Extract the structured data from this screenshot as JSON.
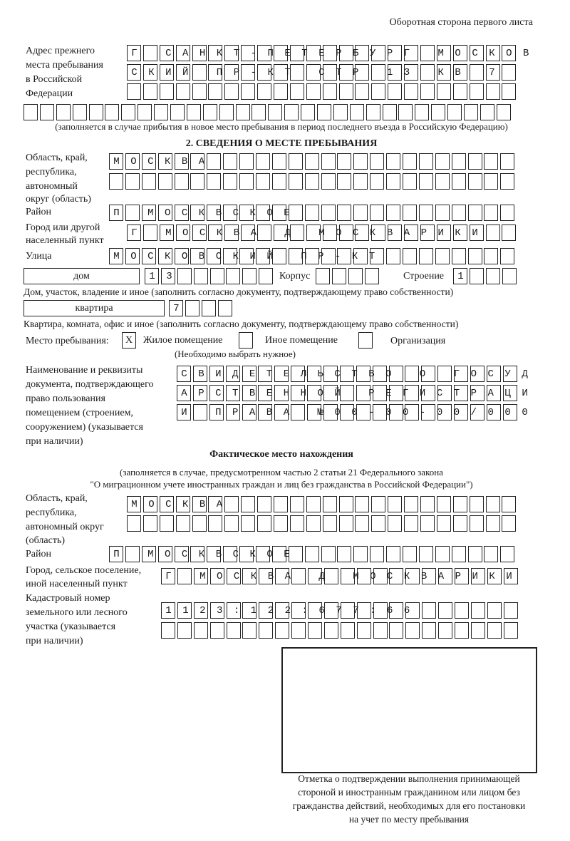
{
  "header": {
    "sheet_label": "Оборотная сторона первого листа"
  },
  "previous_address": {
    "label_lines": [
      "Адрес прежнего",
      "места пребывания",
      "в Российской",
      "Федерации"
    ],
    "rows": [
      "Г САНКТ-ПЕТЕРБУРГ МОСКОВ",
      "СКИЙ ПР-КТ СТР 13 КВ 7  ",
      "                        ",
      "                              "
    ],
    "note": "(заполняется в случае прибытия в новое место пребывания в период последнего въезда в Российскую Федерацию)"
  },
  "section2": {
    "title": "2. СВЕДЕНИЯ О МЕСТЕ ПРЕБЫВАНИЯ",
    "region": {
      "label_lines": [
        "Область, край,",
        "республика,",
        "автономный",
        "округ (область)"
      ],
      "rows": [
        "МОСКВА                   ",
        "                         "
      ]
    },
    "district": {
      "label": "Район",
      "row": "П МОСКВСКОЕ              "
    },
    "city": {
      "label_lines": [
        "Город или другой",
        "населенный пункт"
      ],
      "row": "Г МОСКВА Д МОСКВАРИКИ   "
    },
    "street": {
      "label": "Улица",
      "row": "МОСКОВСКИЙ ПР-КТ         "
    },
    "house": {
      "type_value": "дом",
      "number": "13      ",
      "korpus_label": "Корпус",
      "korpus": "    ",
      "building_label": "Строение",
      "building": "1   ",
      "note": "Дом, участок, владение и иное (заполнить согласно документу, подтверждающему право собственности)"
    },
    "apartment": {
      "type_value": "квартира",
      "number": "7   ",
      "note": "Квартира, комната, офис и иное (заполнить согласно документу, подтверждающему право собственности)"
    },
    "place_type": {
      "label": "Место пребывания:",
      "options": [
        {
          "label": "Жилое помещение",
          "mark": "X"
        },
        {
          "label": "Иное помещение",
          "mark": ""
        },
        {
          "label": "Организация",
          "mark": ""
        }
      ],
      "hint": "(Необходимо выбрать нужное)"
    },
    "document": {
      "label_lines": [
        "Наименование и реквизиты",
        "документа, подтверждающего",
        "право пользования",
        "помещением (строением,",
        "сооружением) (указывается",
        "при наличии)"
      ],
      "rows": [
        "СВИДЕТЕЛЬСТВО О ГОСУД",
        "АРСТВЕННОЙ РЕГИСТРАЦИ",
        "И ПРАВА №00-00-00/000"
      ]
    }
  },
  "actual_location": {
    "title": "Фактическое место нахождения",
    "note_lines": [
      "(заполняется в случае, предусмотренном частью 2 статьи 21 Федерального закона",
      "\"О миграционном учете иностранных граждан и лиц без гражданства в Российской Федерации\")"
    ],
    "region": {
      "label_lines": [
        "Область, край,",
        "республика,",
        "автономный округ",
        "(область)"
      ],
      "rows": [
        "МОСКВА                  ",
        "                        "
      ]
    },
    "district": {
      "label": "Район",
      "row": "П МОСКВСКОЕ              "
    },
    "city": {
      "label_lines": [
        "Город, сельское поселение,",
        "иной населенный пункт"
      ],
      "row": "Г МОСКВА Д МОСКВАРИКИ "
    },
    "cadastral": {
      "label_lines": [
        "Кадастровый номер",
        "земельного или лесного",
        "участка (указывается",
        "при наличии)"
      ],
      "rows": [
        "1123:122:677:66       ",
        "                      "
      ]
    }
  },
  "confirmation": {
    "caption_lines": [
      "Отметка о подтверждении выполнения принимающей",
      "стороной и иностранным гражданином или лицом без",
      "гражданства действий, необходимых для его постановки",
      "на учет по месту пребывания"
    ]
  }
}
